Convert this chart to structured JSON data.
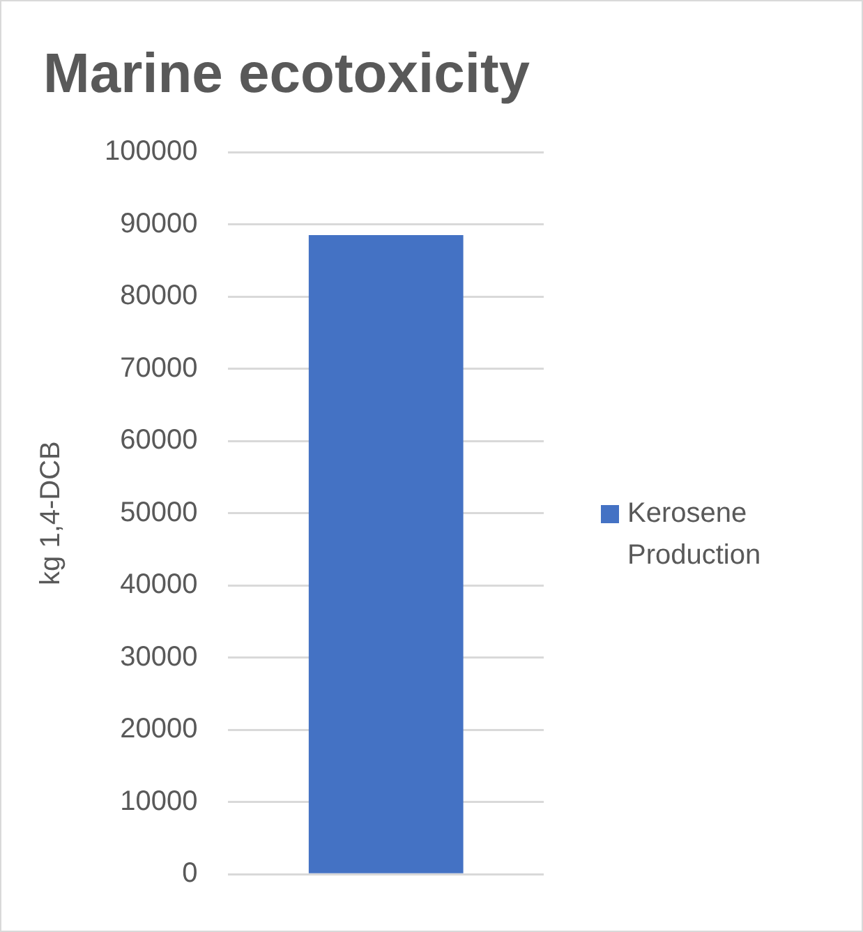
{
  "chart_data": {
    "type": "bar",
    "title": "Marine ecotoxicity",
    "ylabel": "kg 1,4-DCB",
    "categories": [
      null
    ],
    "series": [
      {
        "name": "Kerosene Production",
        "color": "#4472c4",
        "values": [
          88500
        ]
      }
    ],
    "ylim": [
      0,
      100000
    ],
    "yticks": [
      0,
      10000,
      20000,
      30000,
      40000,
      50000,
      60000,
      70000,
      80000,
      90000,
      100000
    ],
    "grid": "y",
    "legend": "right"
  }
}
